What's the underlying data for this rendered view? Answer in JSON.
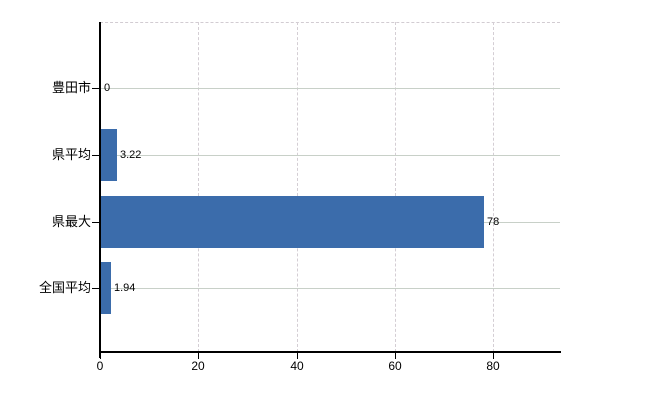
{
  "chart_data": {
    "type": "bar",
    "orientation": "horizontal",
    "title": "",
    "xlabel": "",
    "ylabel": "",
    "categories": [
      "豊田市",
      "県平均",
      "県最大",
      "全国平均"
    ],
    "values": [
      0,
      3.22,
      78,
      1.94
    ],
    "value_labels": [
      "0",
      "3.22",
      "78",
      "1.94"
    ],
    "xlim": [
      0,
      93.6
    ],
    "x_ticks": [
      0,
      20,
      40,
      60,
      80
    ],
    "x_tick_labels": [
      "0",
      "20",
      "40",
      "60",
      "80"
    ],
    "grid": {
      "horizontal": "solid",
      "vertical": "dashed",
      "top_border": "dashed",
      "right_border": "none"
    },
    "legend_position": "none",
    "colors": {
      "bar": "#3b6cab",
      "axis": "#000000",
      "horizontal_gridline": "#c8d0c8",
      "vertical_gridline": "#d4ced4",
      "text": "#000000",
      "background": "#ffffff"
    }
  }
}
